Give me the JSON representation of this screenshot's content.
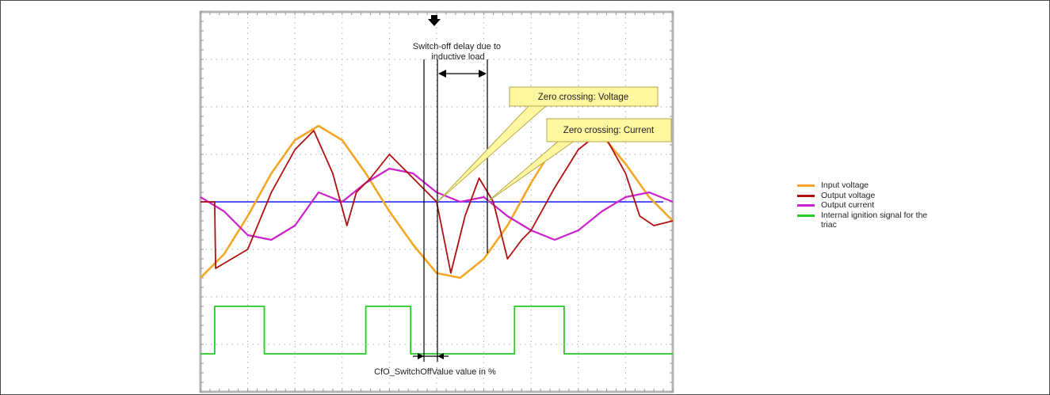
{
  "chart_data": {
    "type": "line",
    "title": "",
    "xlabel": "",
    "ylabel": "",
    "grid": true,
    "legend_position": "right",
    "x_range": [
      0,
      10
    ],
    "y_range": [
      -4,
      4
    ],
    "series": [
      {
        "name": "Input voltage",
        "color": "#f5a623",
        "x": [
          0,
          0.5,
          1,
          1.5,
          2,
          2.5,
          3,
          3.5,
          4,
          4.5,
          5,
          5.5,
          6,
          6.5,
          7,
          7.5,
          8,
          8.5,
          9,
          9.5,
          10
        ],
        "y": [
          -1.6,
          -1.1,
          -0.3,
          0.6,
          1.3,
          1.6,
          1.3,
          0.6,
          -0.2,
          -0.9,
          -1.5,
          -1.6,
          -1.2,
          -0.5,
          0.4,
          1.2,
          1.6,
          1.4,
          0.8,
          0.1,
          -0.4
        ]
      },
      {
        "name": "Output voltage",
        "color": "#b01010",
        "x": [
          0,
          0.3,
          0.32,
          1,
          1.5,
          2,
          2.4,
          2.8,
          3.1,
          3.3,
          3.6,
          4,
          4.5,
          5,
          5.3,
          5.6,
          5.9,
          6.2,
          6.5,
          6.8,
          7,
          7.5,
          8,
          8.5,
          9,
          9.3,
          9.6,
          10
        ],
        "y": [
          0,
          0,
          -1.4,
          -1.0,
          0.2,
          1.1,
          1.5,
          0.6,
          -0.5,
          0.2,
          0.5,
          1.0,
          0.5,
          0.0,
          -1.5,
          -0.3,
          0.5,
          0.0,
          -1.2,
          -0.8,
          -0.6,
          0.3,
          1.1,
          1.5,
          0.6,
          -0.3,
          -0.5,
          -0.4
        ]
      },
      {
        "name": "Output current",
        "color": "#cc22cc",
        "x": [
          0,
          0.5,
          1,
          1.5,
          2,
          2.5,
          3,
          3.5,
          4,
          4.5,
          5,
          5.5,
          6,
          6.5,
          7,
          7.5,
          8,
          8.5,
          9,
          9.5,
          10
        ],
        "y": [
          0.1,
          -0.2,
          -0.7,
          -0.8,
          -0.5,
          0.2,
          0.0,
          0.4,
          0.7,
          0.6,
          0.2,
          0.0,
          0.1,
          -0.3,
          -0.6,
          -0.8,
          -0.6,
          -0.2,
          0.1,
          0.2,
          0.0
        ]
      },
      {
        "name": "Internal ignition signal for the triac",
        "color": "#22cc22",
        "x": [
          0,
          0.3,
          0.3,
          1.35,
          1.35,
          3.5,
          3.5,
          4.45,
          4.45,
          6.65,
          6.65,
          7.7,
          7.7,
          10
        ],
        "y": [
          -3.2,
          -3.2,
          -2.2,
          -2.2,
          -3.2,
          -3.2,
          -2.2,
          -2.2,
          -3.2,
          -3.2,
          -2.2,
          -2.2,
          -3.2,
          -3.2
        ]
      }
    ]
  },
  "annotations": {
    "switch_off_delay": "Switch-off delay due to inductive load",
    "zero_crossing_voltage": "Zero crossing: Voltage",
    "zero_crossing_current": "Zero crossing: Current",
    "cfo_value": "CfO_SwitchOffValue value in %"
  },
  "legend": {
    "items": [
      {
        "label": "Input voltage",
        "color": "#f5a623"
      },
      {
        "label": "Output voltage",
        "color": "#b01010"
      },
      {
        "label": "Output current",
        "color": "#cc22cc"
      },
      {
        "label": "Internal ignition signal for the triac",
        "color": "#22cc22"
      }
    ]
  },
  "colors": {
    "grid_border": "#b4b4b4",
    "grid_dot": "#9a9a9a",
    "baseline": "#1a1aff",
    "callout_fill": "#fff6a0",
    "callout_stroke": "#b8a84a"
  }
}
